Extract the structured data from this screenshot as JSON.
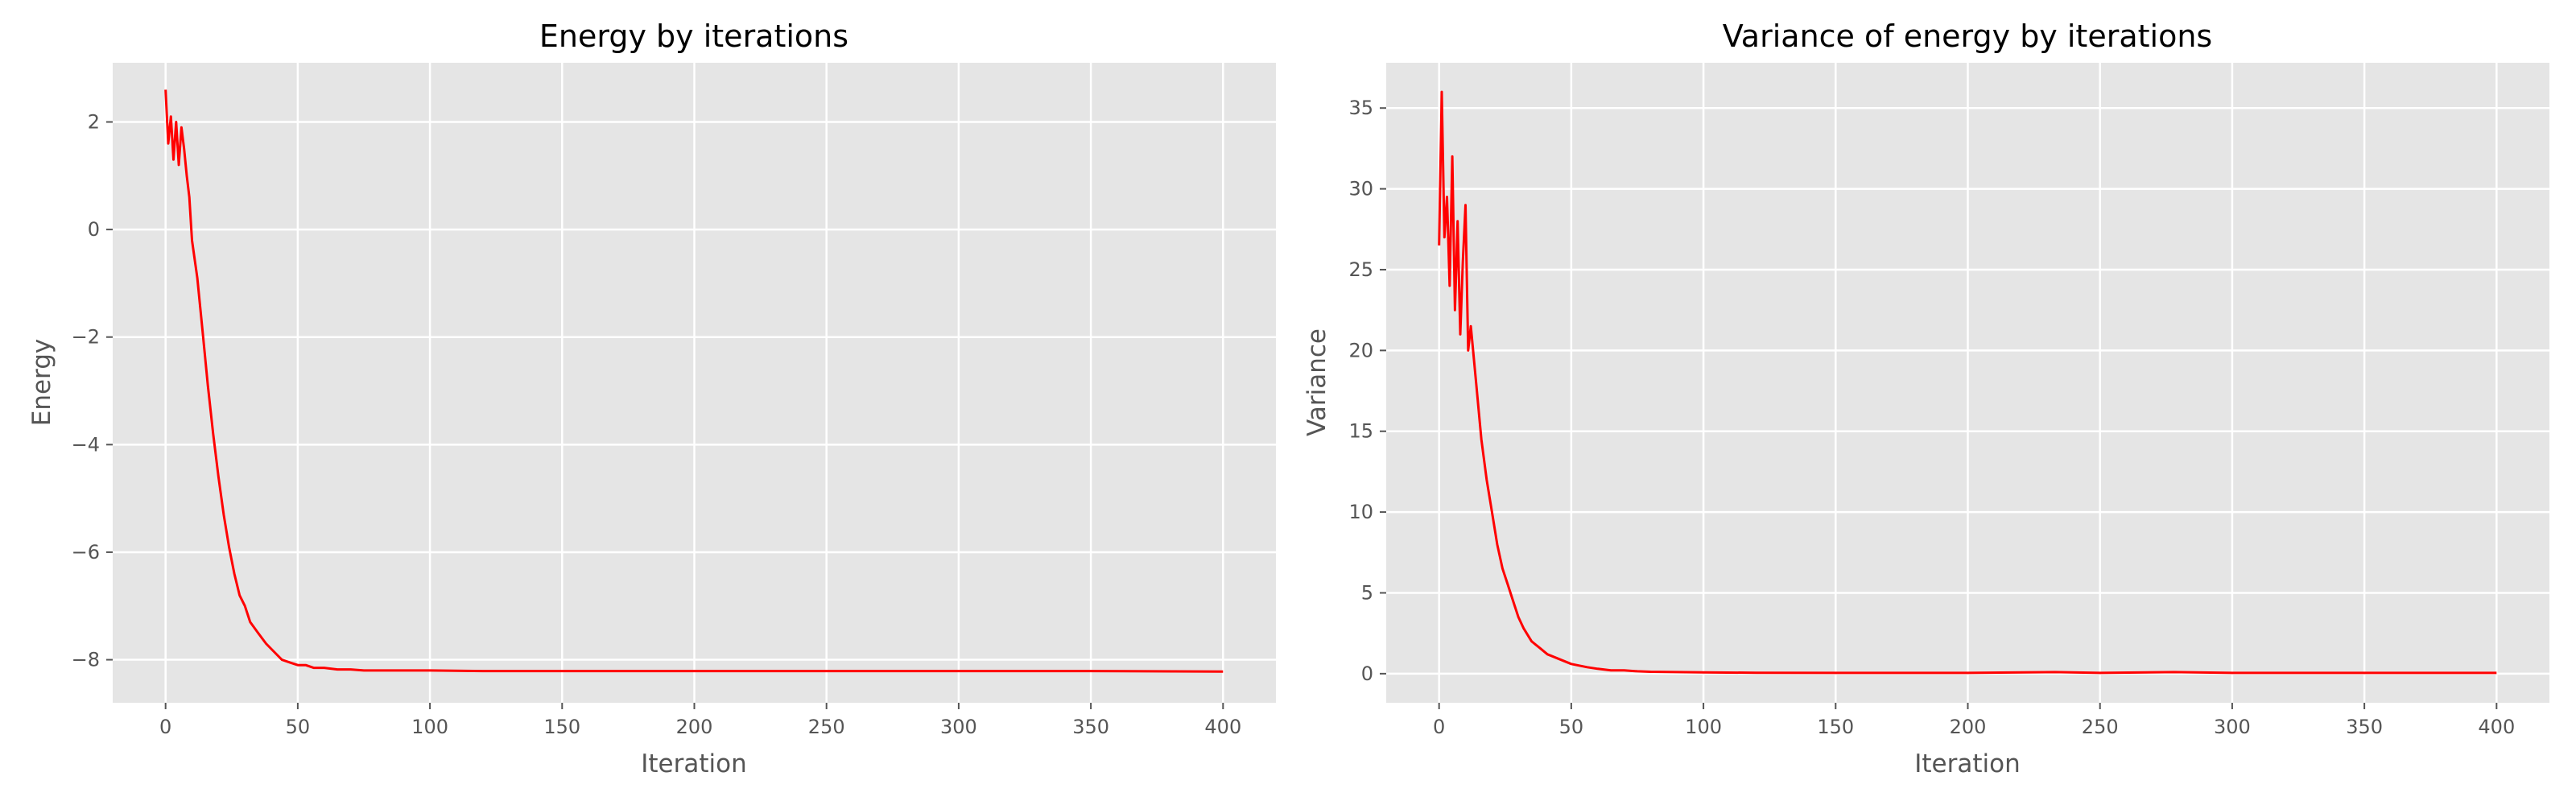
{
  "chart_data": [
    {
      "type": "line",
      "title": "Energy by iterations",
      "xlabel": "Iteration",
      "ylabel": "Energy",
      "xlim": [
        -20,
        420
      ],
      "ylim": [
        -8.8,
        3.1
      ],
      "xticks": [
        0,
        50,
        100,
        150,
        200,
        250,
        300,
        350,
        400
      ],
      "yticks": [
        -8,
        -6,
        -4,
        -2,
        0,
        2
      ],
      "grid": true,
      "legend": "none",
      "series": [
        {
          "color": "#ff0000",
          "x": [
            0,
            1,
            2,
            3,
            4,
            5,
            6,
            7,
            8,
            9,
            10,
            12,
            14,
            16,
            18,
            20,
            22,
            24,
            26,
            28,
            30,
            32,
            35,
            38,
            41,
            44,
            47,
            50,
            53,
            56,
            60,
            65,
            70,
            75,
            80,
            90,
            100,
            120,
            140,
            160,
            180,
            200,
            250,
            300,
            350,
            400
          ],
          "y": [
            2.6,
            1.6,
            2.1,
            1.3,
            2.0,
            1.2,
            1.9,
            1.5,
            1.0,
            0.6,
            -0.2,
            -0.9,
            -1.9,
            -2.9,
            -3.8,
            -4.6,
            -5.3,
            -5.9,
            -6.4,
            -6.8,
            -7.0,
            -7.3,
            -7.5,
            -7.7,
            -7.85,
            -8.0,
            -8.05,
            -8.1,
            -8.1,
            -8.15,
            -8.15,
            -8.18,
            -8.18,
            -8.2,
            -8.2,
            -8.2,
            -8.2,
            -8.21,
            -8.21,
            -8.21,
            -8.21,
            -8.21,
            -8.21,
            -8.21,
            -8.21,
            -8.22
          ]
        }
      ]
    },
    {
      "type": "line",
      "title": "Variance of energy by iterations",
      "xlabel": "Iteration",
      "ylabel": "Variance",
      "xlim": [
        -20,
        420
      ],
      "ylim": [
        -1.8,
        37.8
      ],
      "xticks": [
        0,
        50,
        100,
        150,
        200,
        250,
        300,
        350,
        400
      ],
      "yticks": [
        0,
        5,
        10,
        15,
        20,
        25,
        30,
        35
      ],
      "grid": true,
      "legend": "none",
      "series": [
        {
          "color": "#ff0000",
          "x": [
            0,
            1,
            2,
            3,
            4,
            5,
            6,
            7,
            8,
            9,
            10,
            11,
            12,
            14,
            16,
            18,
            20,
            22,
            24,
            26,
            28,
            30,
            32,
            35,
            38,
            41,
            44,
            47,
            50,
            53,
            56,
            60,
            65,
            70,
            75,
            80,
            90,
            100,
            120,
            150,
            200,
            233,
            250,
            278,
            300,
            350,
            400
          ],
          "y": [
            26.5,
            36.0,
            27.0,
            29.5,
            24.0,
            32.0,
            22.5,
            28.0,
            21.0,
            25.5,
            29.0,
            20.0,
            21.5,
            18.0,
            14.5,
            12.0,
            10.0,
            8.0,
            6.5,
            5.5,
            4.5,
            3.5,
            2.8,
            2.0,
            1.6,
            1.2,
            1.0,
            0.8,
            0.6,
            0.5,
            0.4,
            0.3,
            0.2,
            0.2,
            0.15,
            0.12,
            0.1,
            0.08,
            0.06,
            0.05,
            0.05,
            0.1,
            0.05,
            0.1,
            0.05,
            0.05,
            0.05
          ]
        }
      ]
    }
  ]
}
